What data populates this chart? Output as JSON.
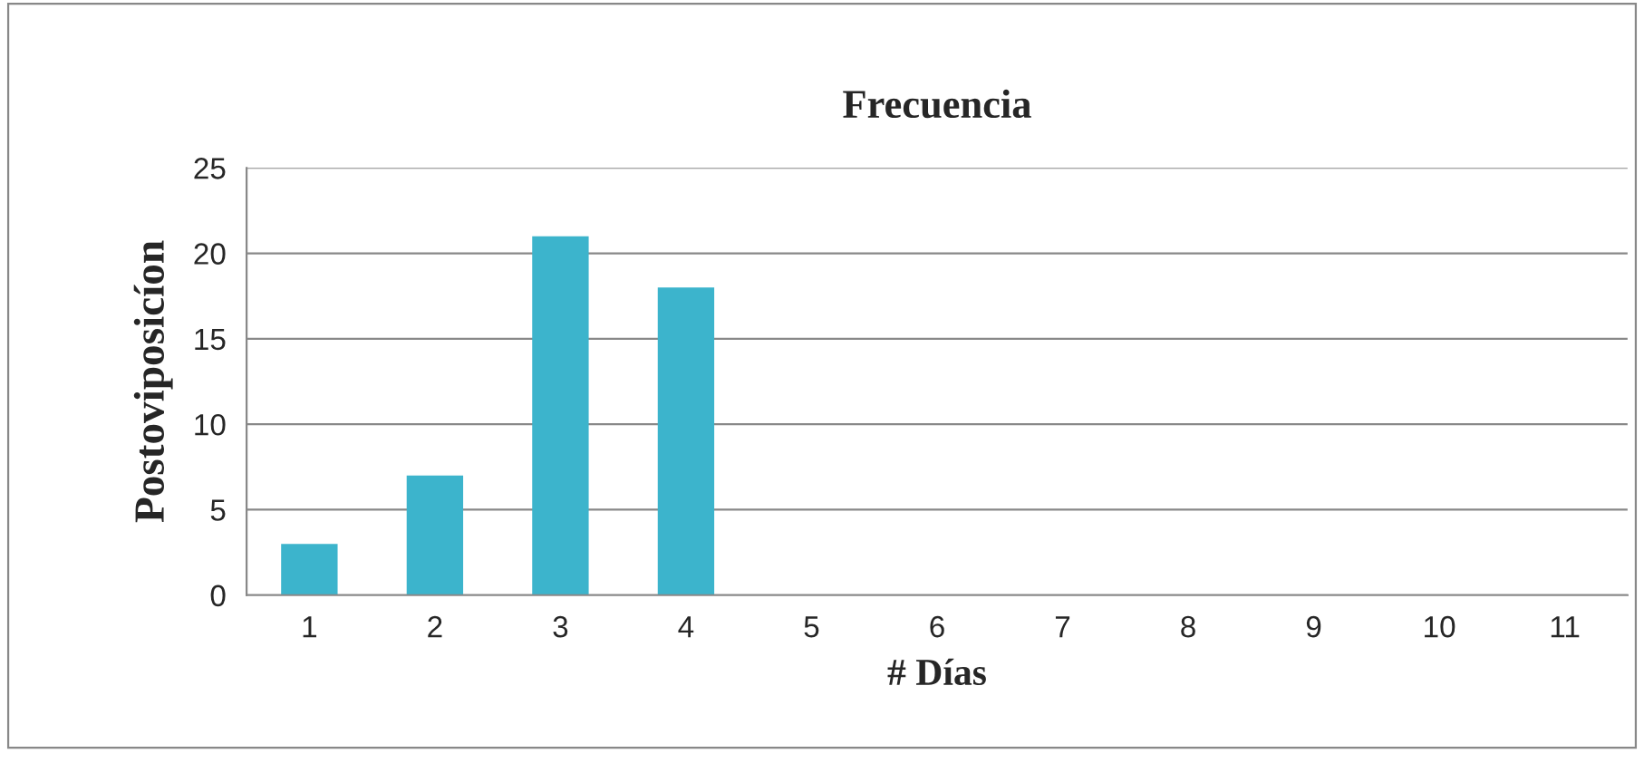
{
  "chart_data": {
    "type": "bar",
    "title": "Frecuencia",
    "xlabel": "# Días",
    "ylabel": "Postoviposicíon",
    "categories": [
      "1",
      "2",
      "3",
      "4",
      "5",
      "6",
      "7",
      "8",
      "9",
      "10",
      "11"
    ],
    "values": [
      3,
      7,
      21,
      18,
      0,
      0,
      0,
      0,
      0,
      0,
      0
    ],
    "color": "#3cb4cc",
    "ylim": [
      0,
      25
    ],
    "yticks": [
      0,
      5,
      10,
      15,
      20,
      25
    ],
    "grid": "y",
    "legend": false
  }
}
